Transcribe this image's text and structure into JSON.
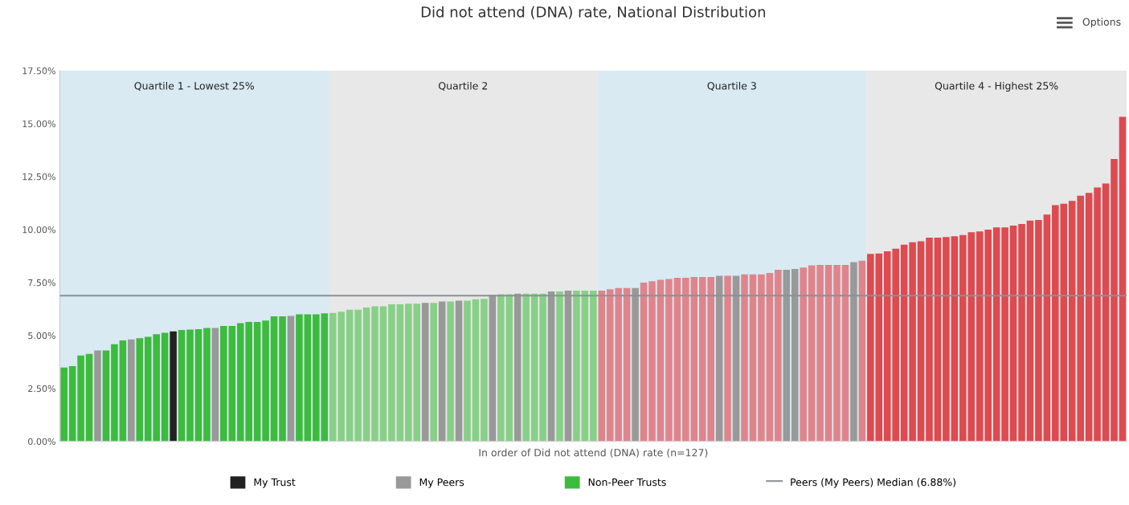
{
  "chart_data": {
    "type": "bar",
    "title": "Did not attend (DNA) rate, National Distribution",
    "xlabel": "In order of Did not attend (DNA) rate (n=127)",
    "annotations": [
      "Quartile 1 - Lowest 25%",
      "Quartile 2",
      "Quartile 3",
      "Quartile 4 - Highest 25%",
      "Options"
    ],
    "categories": [
      null,
      null,
      null,
      null,
      null,
      null,
      null,
      null,
      null,
      null,
      null,
      null,
      null,
      null,
      null,
      null,
      null,
      null,
      null,
      null,
      null,
      null,
      null,
      null,
      null,
      null,
      null,
      null,
      null,
      null,
      null,
      null,
      null,
      null,
      null,
      null,
      null,
      null,
      null,
      null,
      null,
      null,
      null,
      null,
      null,
      null,
      null,
      null,
      null,
      null,
      null,
      null,
      null,
      null,
      null,
      null,
      null,
      null,
      null,
      null,
      null,
      null,
      null,
      null,
      null,
      null,
      null,
      null,
      null,
      null,
      null,
      null,
      null,
      null,
      null,
      null,
      null,
      null,
      null,
      null,
      null,
      null,
      null,
      null,
      null,
      null,
      null,
      null,
      null,
      null,
      null,
      null,
      null,
      null,
      null,
      null,
      null,
      null,
      null,
      null,
      null,
      null,
      null,
      null,
      null,
      null,
      null,
      null,
      null,
      null,
      null,
      null,
      null,
      null,
      null,
      null,
      null,
      null,
      null,
      null,
      null,
      null,
      null,
      null,
      null,
      null,
      null
    ],
    "series": [
      {
        "name": "My Trust",
        "color": "#222222",
        "values": [
          null,
          null,
          null,
          null,
          null,
          null,
          null,
          null,
          null,
          null,
          null,
          null,
          null,
          5.19,
          null,
          null,
          null,
          null,
          null,
          null,
          null,
          null,
          null,
          null,
          null,
          null,
          null,
          null,
          null,
          null,
          null,
          null,
          null,
          null,
          null,
          null,
          null,
          null,
          null,
          null,
          null,
          null,
          null,
          null,
          null,
          null,
          null,
          null,
          null,
          null,
          null,
          null,
          null,
          null,
          null,
          null,
          null,
          null,
          null,
          null,
          null,
          null,
          null,
          null,
          null,
          null,
          null,
          null,
          null,
          null,
          null,
          null,
          null,
          null,
          null,
          null,
          null,
          null,
          null,
          null,
          null,
          null,
          null,
          null,
          null,
          null,
          null,
          null,
          null,
          null,
          null,
          null,
          null,
          null,
          null,
          null,
          null,
          null,
          null,
          null,
          null,
          null,
          null,
          null,
          null,
          null,
          null,
          null,
          null,
          null,
          null,
          null,
          null,
          null,
          null,
          null,
          null,
          null,
          null,
          null,
          null,
          null,
          null,
          null,
          null,
          null,
          null
        ]
      },
      {
        "name": "My Peers",
        "color": "#999999",
        "values": [
          null,
          null,
          null,
          null,
          4.29,
          null,
          null,
          null,
          4.81,
          null,
          null,
          null,
          null,
          null,
          null,
          null,
          null,
          null,
          5.35,
          null,
          null,
          null,
          null,
          null,
          null,
          null,
          null,
          5.92,
          null,
          null,
          null,
          null,
          null,
          null,
          null,
          null,
          null,
          null,
          null,
          null,
          null,
          null,
          null,
          6.54,
          null,
          6.6,
          null,
          6.64,
          null,
          null,
          null,
          6.92,
          null,
          null,
          6.97,
          null,
          null,
          null,
          7.08,
          null,
          7.12,
          null,
          null,
          null,
          null,
          null,
          null,
          null,
          7.24,
          null,
          null,
          null,
          null,
          null,
          null,
          null,
          null,
          null,
          7.82,
          null,
          7.82,
          null,
          null,
          null,
          null,
          null,
          8.1,
          8.14,
          null,
          null,
          null,
          null,
          null,
          null,
          8.46,
          null,
          null,
          null,
          null,
          null,
          null,
          null,
          null,
          null,
          null,
          null,
          null,
          null,
          null,
          null,
          null,
          null,
          null,
          null,
          null,
          null,
          null,
          null,
          null,
          null,
          null,
          null,
          null,
          null,
          null,
          null,
          null
        ]
      },
      {
        "name": "Non-Peer Trusts",
        "values": [
          3.49,
          3.55,
          4.06,
          4.13,
          null,
          4.29,
          4.59,
          4.77,
          null,
          4.87,
          4.94,
          5.06,
          5.13,
          null,
          5.26,
          5.28,
          5.3,
          5.35,
          null,
          5.45,
          5.45,
          5.58,
          5.64,
          5.64,
          5.7,
          5.9,
          5.9,
          null,
          6.0,
          6.0,
          6.0,
          6.05,
          6.06,
          6.12,
          6.22,
          6.22,
          6.32,
          6.38,
          6.38,
          6.47,
          6.47,
          6.5,
          6.5,
          null,
          6.54,
          null,
          6.6,
          null,
          6.64,
          6.71,
          6.73,
          null,
          6.95,
          6.95,
          null,
          6.97,
          6.97,
          6.97,
          null,
          7.08,
          null,
          7.12,
          7.12,
          7.12,
          7.12,
          7.18,
          7.24,
          7.24,
          null,
          7.5,
          7.56,
          7.63,
          7.67,
          7.72,
          7.72,
          7.76,
          7.76,
          7.76,
          null,
          7.82,
          null,
          7.88,
          7.88,
          7.88,
          7.95,
          8.1,
          null,
          null,
          8.21,
          8.31,
          8.33,
          8.33,
          8.33,
          8.33,
          null,
          8.53,
          8.85,
          8.87,
          8.97,
          9.1,
          9.29,
          9.4,
          9.45,
          9.62,
          9.62,
          9.65,
          9.68,
          9.74,
          9.87,
          9.91,
          10.0,
          10.1,
          10.1,
          10.19,
          10.26,
          10.42,
          10.45,
          10.71,
          11.15,
          11.22,
          11.35,
          11.6,
          11.73,
          11.99,
          12.18,
          13.33,
          15.32
        ],
        "colors": [
          "#3dbb3d",
          "#3dbb3d",
          "#3dbb3d",
          "#3dbb3d",
          null,
          "#3dbb3d",
          "#3dbb3d",
          "#3dbb3d",
          null,
          "#3dbb3d",
          "#3dbb3d",
          "#3dbb3d",
          "#3dbb3d",
          null,
          "#3dbb3d",
          "#3dbb3d",
          "#3dbb3d",
          "#3dbb3d",
          null,
          "#3dbb3d",
          "#3dbb3d",
          "#3dbb3d",
          "#3dbb3d",
          "#3dbb3d",
          "#3dbb3d",
          "#3dbb3d",
          "#3dbb3d",
          null,
          "#3dbb3d",
          "#3dbb3d",
          "#3dbb3d",
          "#3dbb3d",
          "#88d088",
          "#88d088",
          "#88d088",
          "#88d088",
          "#88d088",
          "#88d088",
          "#88d088",
          "#88d088",
          "#88d088",
          "#88d088",
          "#88d088",
          null,
          "#88d088",
          null,
          "#88d088",
          null,
          "#88d088",
          "#88d088",
          "#88d088",
          null,
          "#88d088",
          "#88d088",
          null,
          "#88d088",
          "#88d088",
          "#88d088",
          null,
          "#88d088",
          null,
          "#88d088",
          "#88d088",
          "#88d088",
          "#e0848b",
          "#e0848b",
          "#e0848b",
          "#e0848b",
          null,
          "#e0848b",
          "#e0848b",
          "#e0848b",
          "#e0848b",
          "#e0848b",
          "#e0848b",
          "#e0848b",
          "#e0848b",
          "#e0848b",
          null,
          "#e0848b",
          null,
          "#e0848b",
          "#e0848b",
          "#e0848b",
          "#e0848b",
          "#e0848b",
          null,
          null,
          "#e0848b",
          "#e0848b",
          "#e0848b",
          "#e0848b",
          "#e0848b",
          "#e0848b",
          null,
          "#e0848b",
          "#dd4a50",
          "#dd4a50",
          "#dd4a50",
          "#dd4a50",
          "#dd4a50",
          "#dd4a50",
          "#dd4a50",
          "#dd4a50",
          "#dd4a50",
          "#dd4a50",
          "#dd4a50",
          "#dd4a50",
          "#dd4a50",
          "#dd4a50",
          "#dd4a50",
          "#dd4a50",
          "#dd4a50",
          "#dd4a50",
          "#dd4a50",
          "#dd4a50",
          "#dd4a50",
          "#dd4a50",
          "#dd4a50",
          "#dd4a50",
          "#dd4a50",
          "#dd4a50",
          "#dd4a50",
          "#dd4a50",
          "#dd4a50",
          "#dd4a50",
          "#dd4a50"
        ]
      }
    ],
    "ylim": [
      0,
      17.5
    ],
    "yticks": [
      {
        "value": 0,
        "label": "0.00%"
      },
      {
        "value": 2.5,
        "label": "2.50%"
      },
      {
        "value": 5,
        "label": "5.00%"
      },
      {
        "value": 7.5,
        "label": "7.50%"
      },
      {
        "value": 10,
        "label": "10.00%"
      },
      {
        "value": 12.5,
        "label": "12.50%"
      },
      {
        "value": 15,
        "label": "15.00%"
      },
      {
        "value": 17.5,
        "label": "17.50%"
      }
    ],
    "ref_lines": [
      {
        "axis": "y",
        "value": 6.88,
        "label": "Peers (My Peers) Median (6.88%)",
        "color": "#8a9196"
      }
    ],
    "grid": false,
    "legend": "bottom"
  }
}
